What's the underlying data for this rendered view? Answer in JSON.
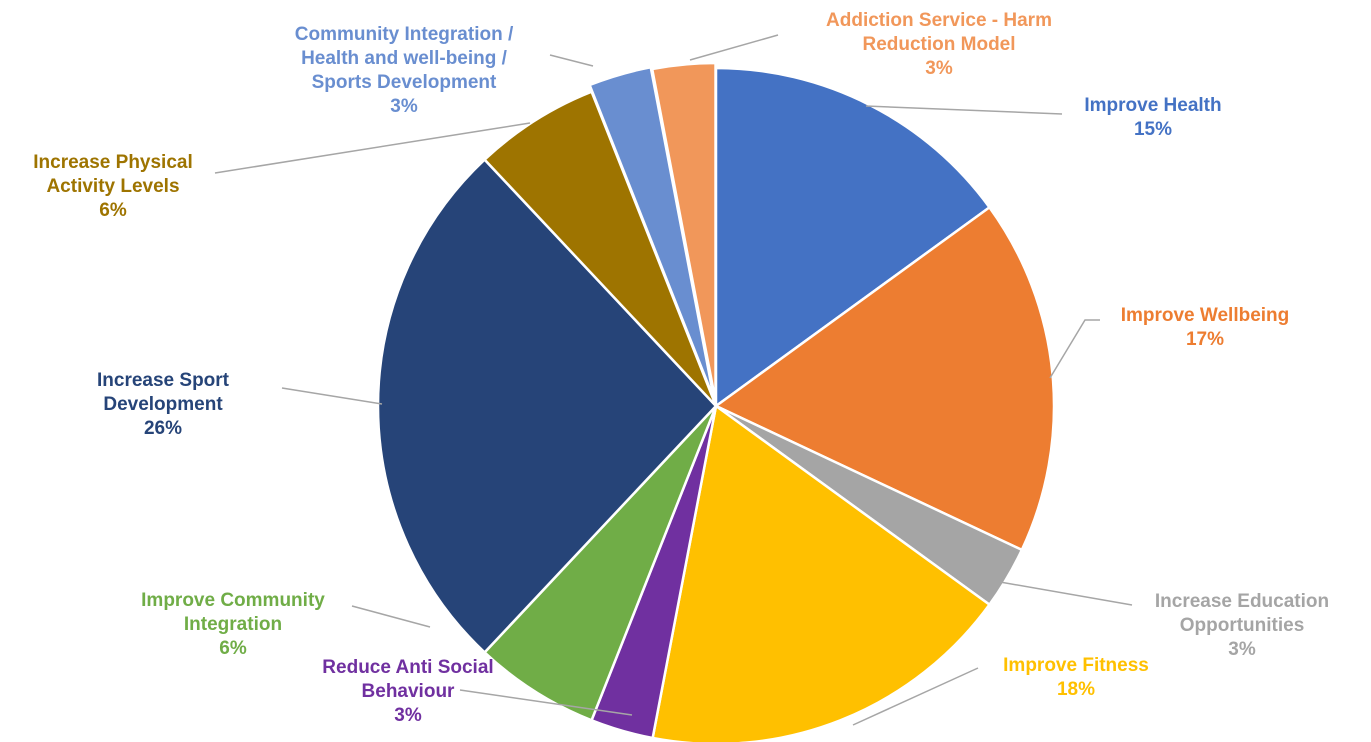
{
  "chart_data": {
    "type": "pie",
    "title": "",
    "slices": [
      {
        "label_lines": [
          "Improve Health"
        ],
        "value": 15,
        "pct_label": "15%",
        "color": "#4472c4"
      },
      {
        "label_lines": [
          "Improve Wellbeing"
        ],
        "value": 17,
        "pct_label": "17%",
        "color": "#ed7d31"
      },
      {
        "label_lines": [
          "Increase Education",
          "Opportunities"
        ],
        "value": 3,
        "pct_label": "3%",
        "color": "#a5a5a5"
      },
      {
        "label_lines": [
          "Improve Fitness"
        ],
        "value": 18,
        "pct_label": "18%",
        "color": "#ffc000"
      },
      {
        "label_lines": [
          "Reduce Anti Social",
          "Behaviour"
        ],
        "value": 3,
        "pct_label": "3%",
        "color": "#7030a0"
      },
      {
        "label_lines": [
          "Improve Community",
          "Integration"
        ],
        "value": 6,
        "pct_label": "6%",
        "color": "#70ad47"
      },
      {
        "label_lines": [
          "Increase Sport",
          "Development"
        ],
        "value": 26,
        "pct_label": "26%",
        "color": "#264478"
      },
      {
        "label_lines": [
          "Increase Physical",
          "Activity Levels"
        ],
        "value": 6,
        "pct_label": "6%",
        "color": "#9e7400"
      },
      {
        "label_lines": [
          "Community Integration /",
          "Health and well-being /",
          "Sports Development"
        ],
        "value": 3,
        "pct_label": "3%",
        "color": "#698ed0"
      },
      {
        "label_lines": [
          "Addiction Service - Harm",
          "Reduction Model"
        ],
        "value": 3,
        "pct_label": "3%",
        "color": "#f1975a"
      }
    ],
    "legend": "none",
    "data_labels": "outside with leader lines"
  }
}
